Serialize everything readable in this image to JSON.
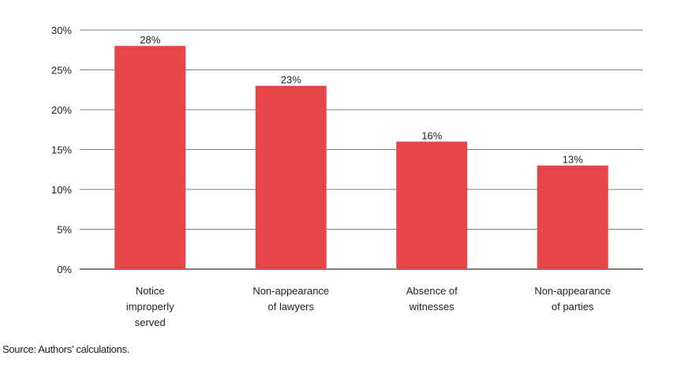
{
  "chart_data": {
    "type": "bar",
    "categories": [
      [
        "Notice",
        "improperly",
        "served"
      ],
      [
        "Non-appearance",
        "of lawyers"
      ],
      [
        "Absence of",
        "witnesses"
      ],
      [
        "Non-appearance",
        "of parties"
      ]
    ],
    "values": [
      28,
      23,
      16,
      13
    ],
    "data_labels": [
      "28%",
      "23%",
      "16%",
      "13%"
    ],
    "y_ticks": [
      0,
      5,
      10,
      15,
      20,
      25,
      30
    ],
    "y_tick_labels": [
      "0%",
      "5%",
      "10%",
      "15%",
      "20%",
      "25%",
      "30%"
    ],
    "ylim": [
      0,
      30
    ],
    "grid": true,
    "legend": "none",
    "bar_color": "#e8454a",
    "title": "",
    "xlabel": "",
    "ylabel": ""
  },
  "source": "Source: Authors’ calculations."
}
